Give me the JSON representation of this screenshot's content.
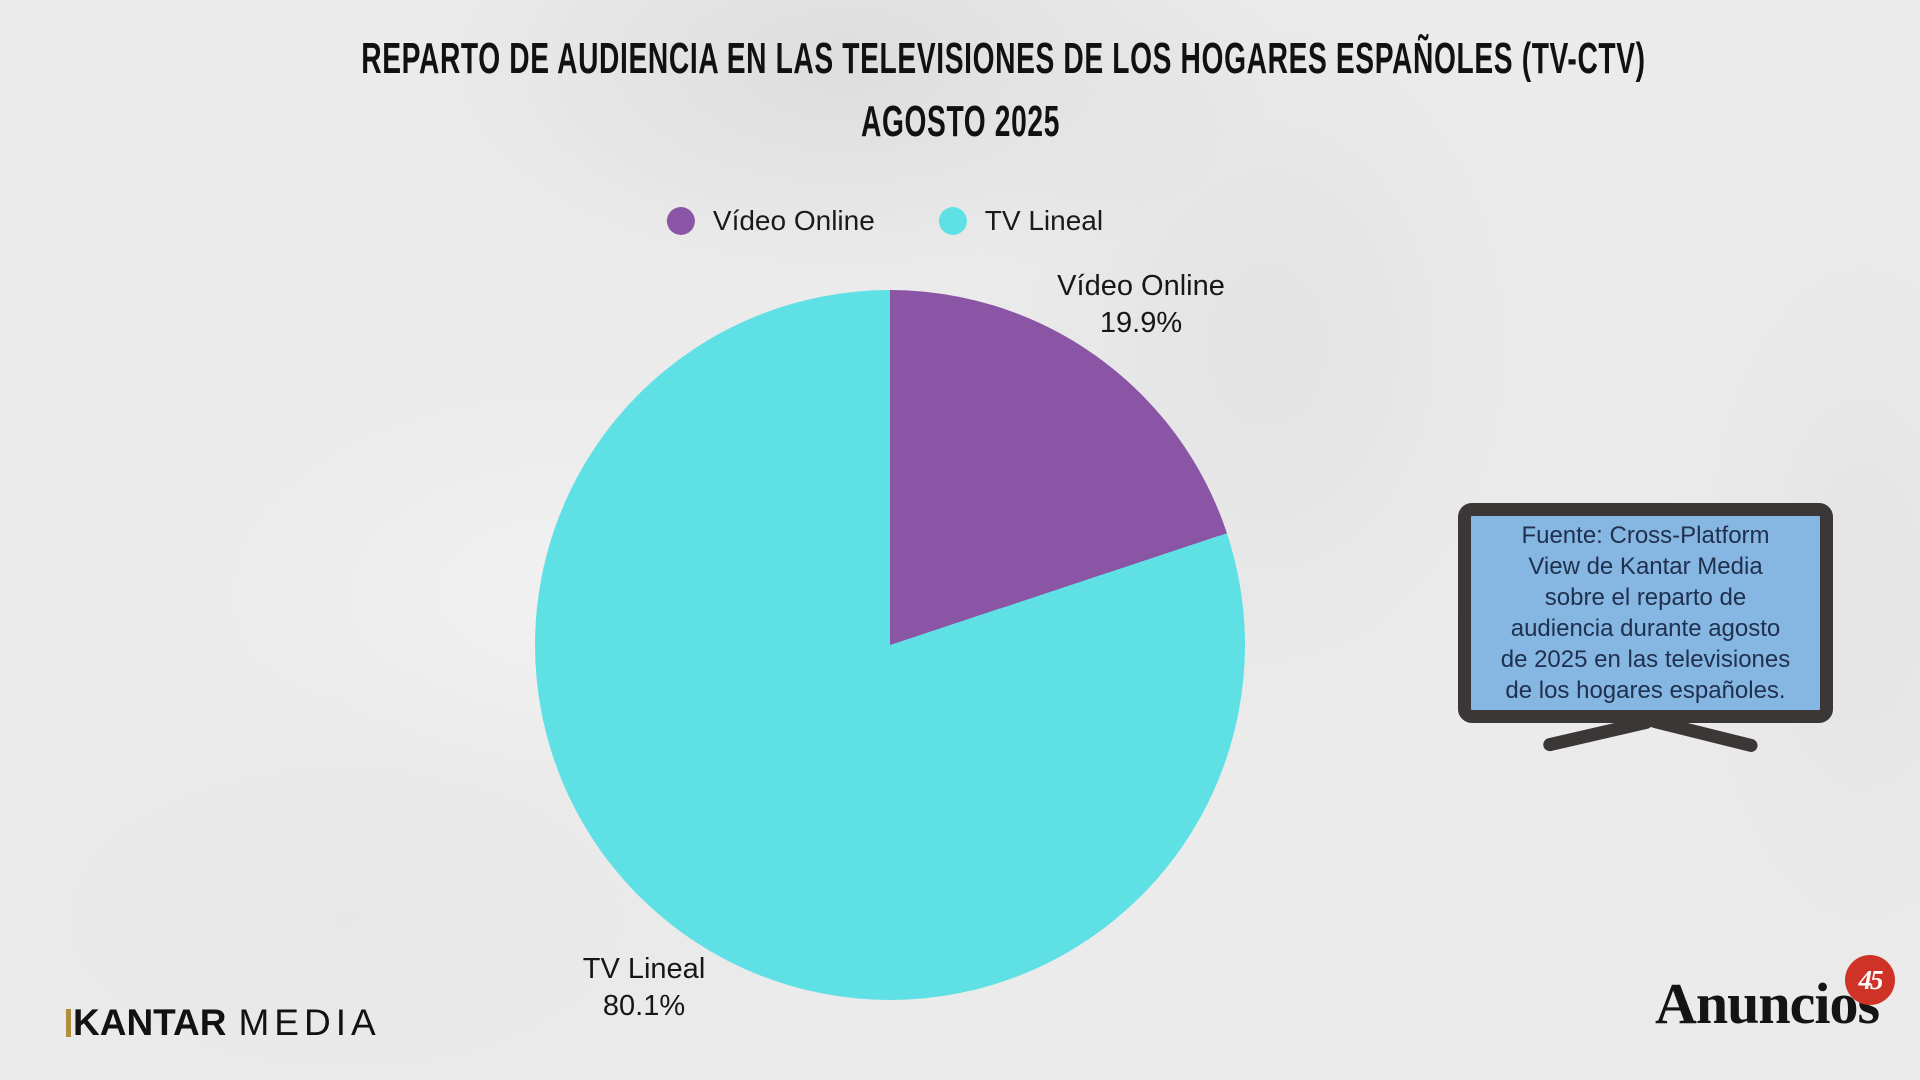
{
  "theme": {
    "background": "#ebebeb",
    "title_color": "#111111",
    "text_color": "#171717"
  },
  "title": {
    "line1": "REPARTO DE AUDIENCIA EN LAS TELEVISIONES DE LOS HOGARES ESPAÑOLES (TV-CTV)",
    "line2": "AGOSTO 2025"
  },
  "legend": {
    "position": "top-center",
    "items": [
      {
        "label": "Vídeo Online",
        "color": "#8b55a6"
      },
      {
        "label": "TV Lineal",
        "color": "#5fe0e4"
      }
    ]
  },
  "chart_data": {
    "type": "pie",
    "title": "Reparto de audiencia en las televisiones de los hogares españoles (TV-CTV)",
    "subtitle": "Agosto 2025",
    "labels": [
      "Vídeo Online",
      "TV Lineal"
    ],
    "values": [
      19.9,
      80.1
    ],
    "value_labels": [
      "19.9%",
      "80.1%"
    ],
    "colors": [
      "#8b55a6",
      "#5fe0e4"
    ],
    "start_angle_deg": 0,
    "direction": "clockwise",
    "legend_position": "top-center",
    "grid": false
  },
  "pie_labels": {
    "video_online": {
      "name": "Vídeo Online",
      "value": "19.9%"
    },
    "tv_lineal": {
      "name": "TV Lineal",
      "value": "80.1%"
    }
  },
  "source_box": {
    "lines": [
      "Fuente: Cross-Platform",
      "View de Kantar Media",
      "sobre el reparto de",
      "audiencia durante agosto",
      "de 2025 en las televisiones",
      "de los hogares españoles."
    ],
    "fill_color": "#85b7e2",
    "frame_color": "#3b3737",
    "text_color": "#20304f",
    "shape": "tv-with-stand"
  },
  "branding": {
    "kantar": {
      "part1": "KANTAR",
      "part2": "MEDIA",
      "accent_color": "#b28f3e"
    },
    "anuncios": {
      "name": "Anuncios",
      "badge": "45",
      "badge_color": "#cf3227"
    }
  }
}
